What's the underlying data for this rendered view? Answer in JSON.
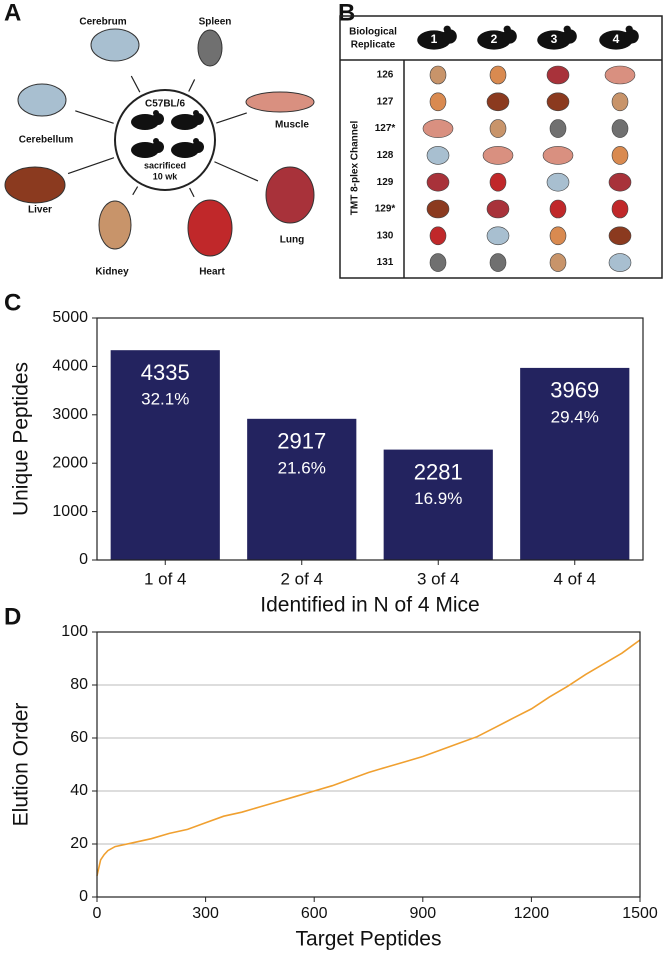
{
  "panel_a": {
    "label": "A",
    "strain": "C57BL/6",
    "note_1": "sacrificed",
    "note_2": "10 wk",
    "organs": [
      "Cerebrum",
      "Spleen",
      "Muscle",
      "Lung",
      "Heart",
      "Kidney",
      "Liver",
      "Cerebellum"
    ]
  },
  "panel_b": {
    "label": "B",
    "header_lines": [
      "Biological",
      "Replicate"
    ],
    "mice": [
      "1",
      "2",
      "3",
      "4"
    ],
    "row_title": "TMT 8-plex Channel",
    "channels": [
      "126",
      "127",
      "127*",
      "128",
      "129",
      "129*",
      "130",
      "131"
    ]
  },
  "chart_data": [
    {
      "type": "bar",
      "panel_label": "C",
      "ylabel": "Unique Peptides",
      "xlabel": "Identified in N of 4 Mice",
      "categories": [
        "1 of 4",
        "2 of 4",
        "3 of 4",
        "4 of 4"
      ],
      "values": [
        4335,
        2917,
        2281,
        3969
      ],
      "share_labels": [
        "32.1%",
        "21.6%",
        "16.9%",
        "29.4%"
      ],
      "color": "#23235f",
      "ylim": [
        0,
        5000
      ],
      "yticks": [
        0,
        1000,
        2000,
        3000,
        4000,
        5000
      ],
      "grid": false
    },
    {
      "type": "line",
      "panel_label": "D",
      "ylabel": "Elution Order",
      "xlabel": "Target Peptides",
      "color": "#f0a030",
      "x": [
        0,
        10,
        20,
        30,
        50,
        100,
        150,
        200,
        250,
        300,
        350,
        400,
        450,
        500,
        550,
        600,
        650,
        700,
        750,
        800,
        850,
        900,
        950,
        1000,
        1050,
        1100,
        1150,
        1200,
        1250,
        1300,
        1350,
        1400,
        1450,
        1500
      ],
      "values": [
        8,
        14,
        16,
        17.5,
        19,
        20.5,
        22,
        24,
        25.5,
        28,
        30.5,
        32,
        34,
        36,
        38,
        40,
        42,
        44.5,
        47,
        49,
        51,
        53,
        55.5,
        58,
        60.5,
        64,
        67.5,
        71,
        75.5,
        79.5,
        84,
        88,
        92,
        97
      ],
      "xlim": [
        0,
        1500
      ],
      "xticks": [
        0,
        300,
        600,
        900,
        1200,
        1500
      ],
      "ylim": [
        0,
        100
      ],
      "yticks": [
        0,
        20,
        40,
        60,
        80,
        100
      ],
      "grid": true
    }
  ]
}
